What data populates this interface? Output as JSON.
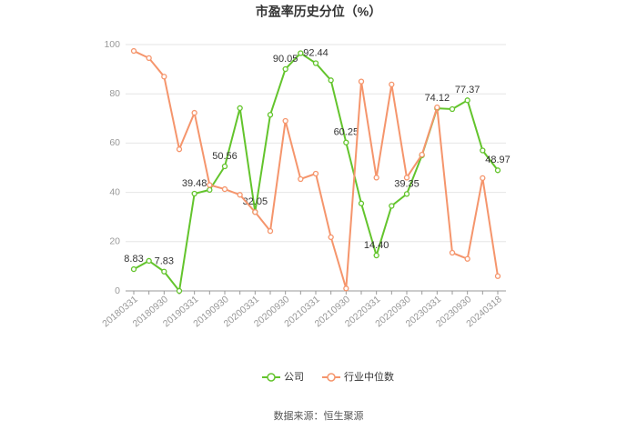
{
  "chart_data": {
    "type": "line",
    "title": "市盈率历史分位（%）",
    "categories": [
      "20180331",
      null,
      "20180930",
      null,
      "20190331",
      null,
      "20190930",
      null,
      "20200331",
      null,
      "20200930",
      null,
      "20210331",
      null,
      "20210930",
      null,
      "20220331",
      null,
      "20220930",
      null,
      "20230331",
      null,
      "20230930",
      null,
      "20240318"
    ],
    "series": [
      {
        "name": "公司",
        "color": "#63c42c",
        "values": [
          8.83,
          12.2,
          7.83,
          0,
          39.48,
          41,
          50.56,
          74.2,
          32.05,
          71.5,
          90.05,
          96.5,
          92.44,
          85.5,
          60.25,
          35.5,
          14.4,
          34.5,
          39.35,
          55,
          74.12,
          73.8,
          77.37,
          57,
          48.97
        ],
        "value_labels": [
          "8.83",
          null,
          "7.83",
          null,
          "39.48",
          null,
          "50.56",
          null,
          "32.05",
          null,
          "90.05",
          null,
          "92.44",
          null,
          "60.25",
          null,
          "14.40",
          null,
          "39.35",
          null,
          "74.12",
          null,
          "77.37",
          null,
          "48.97"
        ]
      },
      {
        "name": "行业中位数",
        "color": "#f5956c",
        "values": [
          97.4,
          94.5,
          87,
          57.5,
          72.3,
          43,
          41.3,
          39,
          32,
          24.3,
          69,
          45.4,
          47.6,
          21.8,
          1,
          85,
          46,
          83.8,
          46,
          55.3,
          74.5,
          15.5,
          13,
          45.8,
          6
        ]
      }
    ],
    "ylim": [
      0,
      100
    ],
    "yticks": [
      0,
      20,
      40,
      60,
      80,
      100
    ],
    "grid": true,
    "source": "数据来源：恒生聚源"
  }
}
